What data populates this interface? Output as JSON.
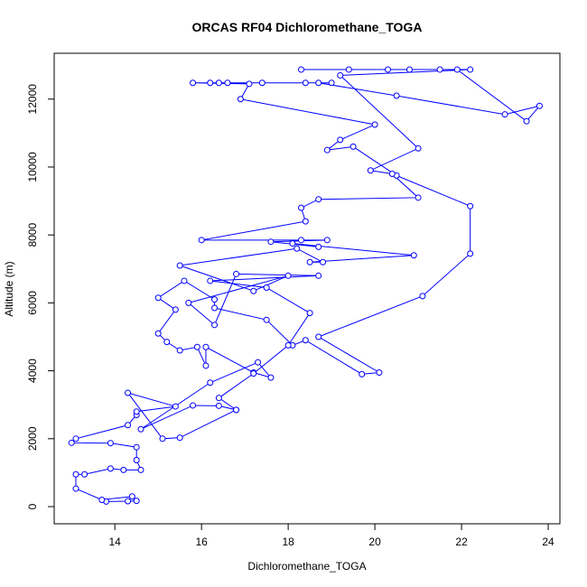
{
  "chart_data": {
    "type": "line",
    "title": "ORCAS RF04 Dichloromethane_TOGA",
    "x_label": "Dichloromethane_TOGA",
    "y_label": "Altitude (m)",
    "color": "#0000ff",
    "x": [
      13.8,
      14.3,
      14.5,
      14.4,
      13.7,
      13.1,
      13.1,
      13.3,
      13.9,
      14.2,
      14.6,
      14.5,
      14.5,
      13.9,
      13.0,
      13.1,
      14.3,
      14.5,
      14.5,
      15.4,
      14.3,
      15.1,
      15.5,
      16.8,
      16.4,
      15.8,
      14.6,
      16.2,
      17.3,
      17.6,
      17.2,
      16.1,
      16.1,
      15.9,
      15.5,
      15.2,
      15.0,
      15.4,
      15.0,
      15.6,
      16.3,
      16.3,
      17.5,
      18.1,
      18.4,
      19.7,
      20.1,
      18.7,
      21.1,
      22.2,
      22.2,
      20.5,
      19.5,
      18.9,
      19.2,
      20.0,
      16.9,
      17.1,
      15.8,
      16.2,
      16.4,
      16.6,
      17.4,
      18.4,
      19.0,
      18.7,
      20.5,
      23.0,
      23.8,
      23.5,
      21.9,
      20.3,
      18.3,
      19.4,
      20.8,
      21.5,
      22.2,
      19.2,
      21.0,
      19.9,
      20.4,
      21.0,
      18.7,
      18.3,
      18.4,
      16.0,
      18.3,
      18.9,
      17.6,
      18.7,
      18.1,
      20.9,
      18.5,
      18.8,
      18.2,
      15.5,
      17.2,
      18.0,
      15.7,
      16.3,
      16.8,
      18.7,
      16.2,
      17.5,
      18.5,
      18.0,
      17.2,
      16.4,
      16.8
    ],
    "values": [
      150,
      160,
      170,
      300,
      200,
      530,
      950,
      950,
      1120,
      1080,
      1080,
      1370,
      1750,
      1870,
      1880,
      2000,
      2400,
      2700,
      2800,
      2950,
      3350,
      2000,
      2030,
      2850,
      2970,
      2980,
      2280,
      3650,
      4250,
      3800,
      3950,
      4700,
      4150,
      4700,
      4600,
      4850,
      5100,
      5800,
      6150,
      6650,
      6100,
      5850,
      5500,
      4750,
      4900,
      3900,
      3950,
      5000,
      6200,
      7450,
      8850,
      9750,
      10600,
      10500,
      10800,
      11250,
      12000,
      12450,
      12480,
      12480,
      12480,
      12480,
      12480,
      12480,
      12480,
      12480,
      12100,
      11550,
      11800,
      11350,
      12870,
      12870,
      12870,
      12870,
      12870,
      12870,
      12870,
      12700,
      10550,
      9900,
      9800,
      9100,
      9050,
      8800,
      8400,
      7850,
      7850,
      7850,
      7800,
      7650,
      7750,
      7400,
      7200,
      7200,
      7600,
      7100,
      6350,
      6800,
      6000,
      5350,
      6850,
      6800,
      6650,
      6450,
      5700,
      4750,
      3920,
      3200,
      2850
    ],
    "xlim": [
      12.6,
      24.27
    ],
    "ylim": [
      -505,
      13350
    ],
    "xticks": [
      14,
      16,
      18,
      20,
      22,
      24
    ],
    "yticks": [
      0,
      2000,
      4000,
      6000,
      8000,
      10000,
      12000
    ]
  }
}
